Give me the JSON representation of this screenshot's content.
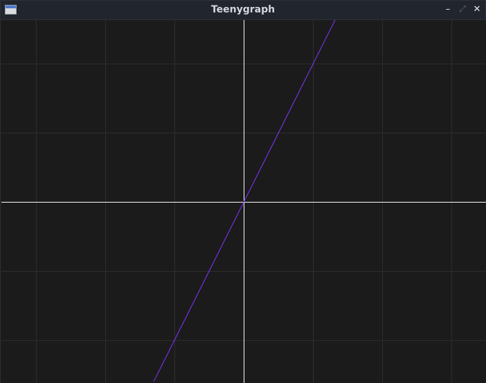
{
  "window": {
    "title": "Teenygraph",
    "icons": {
      "app": "window-icon",
      "minimize": "minimize-icon",
      "maximize": "maximize-icon",
      "close": "close-icon"
    },
    "glyphs": {
      "minimize": "–",
      "maximize": "⤢",
      "close": "✕"
    }
  },
  "chart_data": {
    "type": "line",
    "title": "",
    "xlabel": "",
    "ylabel": "",
    "xlim": [
      -3.5,
      3.5
    ],
    "ylim": [
      -2.6,
      2.6
    ],
    "grid": true,
    "axes_visible": true,
    "series": [
      {
        "x": [
          -1.3,
          1.32
        ],
        "y": [
          -2.6,
          2.63
        ],
        "color": "#7a2ee0"
      }
    ],
    "colors": {
      "background": "#1b1b1b",
      "grid": "#2e2e2e",
      "axes": "#ffffff"
    }
  }
}
